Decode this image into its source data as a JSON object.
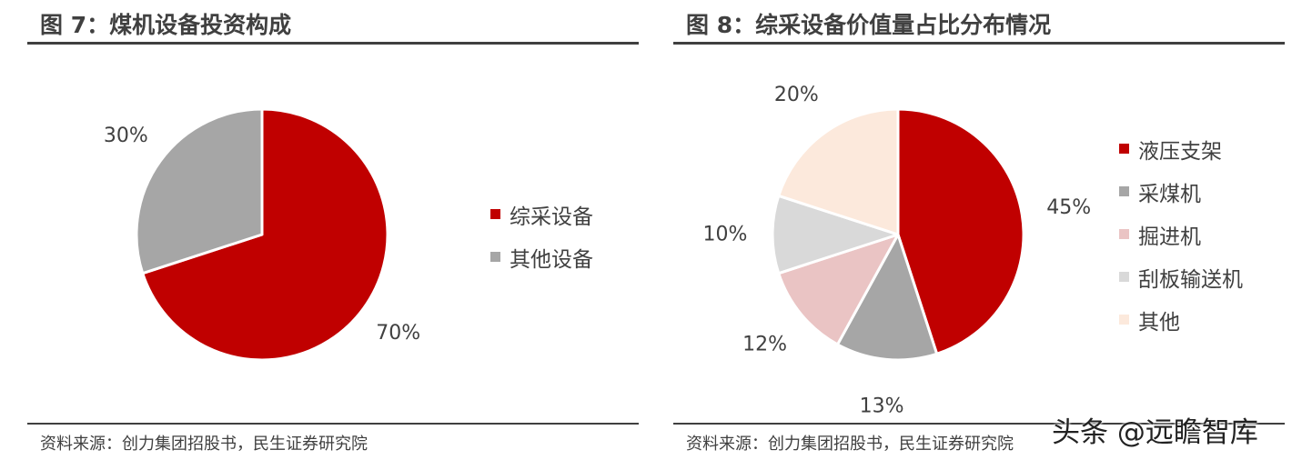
{
  "chart_data": [
    {
      "type": "pie",
      "title": "图 7：煤机设备投资构成",
      "categories": [
        "综采设备",
        "其他设备"
      ],
      "values": [
        70,
        30
      ],
      "labels": [
        "70%",
        "30%"
      ],
      "colors": [
        "#c00000",
        "#a6a6a6"
      ],
      "legend_position": "right",
      "source": "资料来源：创力集团招股书，民生证券研究院"
    },
    {
      "type": "pie",
      "title": "图 8：综采设备价值量占比分布情况",
      "categories": [
        "液压支架",
        "采煤机",
        "掘进机",
        "刮板输送机",
        "其他"
      ],
      "values": [
        45,
        13,
        12,
        10,
        20
      ],
      "labels": [
        "45%",
        "13%",
        "12%",
        "10%",
        "20%"
      ],
      "colors": [
        "#c00000",
        "#a6a6a6",
        "#eac4c4",
        "#d9d9d9",
        "#fce9dc"
      ],
      "legend_position": "right",
      "source": "资料来源：创力集团招股书，民生证券研究院"
    }
  ],
  "watermark": "头条 @远瞻智库"
}
